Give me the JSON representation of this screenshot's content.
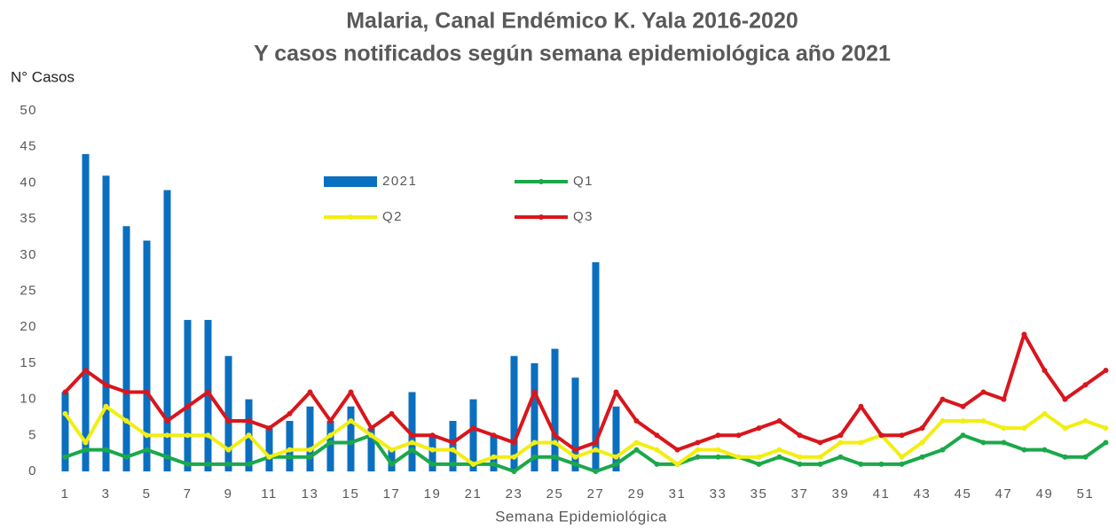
{
  "chart_data": {
    "type": "bar",
    "title": "Malaria, Canal Endémico K. Yala 2016-2020",
    "subtitle": "Y casos notificados según semana epidemiológica año 2021",
    "y_label": "N° Casos",
    "x_label": "Semana Epidemiológica",
    "categories": [
      1,
      null,
      3,
      null,
      5,
      null,
      7,
      null,
      9,
      null,
      11,
      null,
      13,
      null,
      15,
      null,
      17,
      null,
      19,
      null,
      21,
      null,
      23,
      null,
      25,
      null,
      27,
      null,
      29,
      null,
      31,
      null,
      33,
      null,
      35,
      null,
      37,
      null,
      39,
      null,
      41,
      null,
      43,
      null,
      45,
      null,
      47,
      null,
      49,
      null,
      51,
      null
    ],
    "series": [
      {
        "name": "2021",
        "type": "bar",
        "color": "#0b6fc0",
        "values": [
          11,
          44,
          41,
          34,
          32,
          39,
          21,
          21,
          16,
          10,
          6,
          7,
          9,
          7,
          9,
          6,
          3,
          11,
          5,
          7,
          10,
          5,
          16,
          15,
          17,
          13,
          29,
          9,
          null,
          null,
          null,
          null,
          null,
          null,
          null,
          null,
          null,
          null,
          null,
          null,
          null,
          null,
          null,
          null,
          null,
          null,
          null,
          null,
          null,
          null,
          null,
          null
        ]
      },
      {
        "name": "Q1",
        "type": "line",
        "color": "#1ba84a",
        "values": [
          2,
          3,
          3,
          2,
          3,
          2,
          1,
          1,
          1,
          1,
          2,
          2,
          2,
          4,
          4,
          5,
          1,
          3,
          1,
          1,
          1,
          1,
          0,
          2,
          2,
          1,
          0,
          1,
          3,
          1,
          1,
          2,
          2,
          2,
          1,
          2,
          1,
          1,
          2,
          1,
          1,
          1,
          2,
          3,
          5,
          4,
          4,
          3,
          3,
          2,
          2,
          4
        ]
      },
      {
        "name": "Q2",
        "type": "line",
        "color": "#f2ee12",
        "values": [
          8,
          4,
          9,
          7,
          5,
          5,
          5,
          5,
          3,
          5,
          2,
          3,
          3,
          5,
          7,
          5,
          3,
          4,
          3,
          3,
          1,
          2,
          2,
          4,
          4,
          2,
          3,
          2,
          4,
          3,
          1,
          3,
          3,
          2,
          2,
          3,
          2,
          2,
          4,
          4,
          5,
          2,
          4,
          7,
          7,
          7,
          6,
          6,
          8,
          6,
          7,
          6
        ]
      },
      {
        "name": "Q3",
        "type": "line",
        "color": "#d9161c",
        "values": [
          11,
          14,
          12,
          11,
          11,
          7,
          9,
          11,
          7,
          7,
          6,
          8,
          11,
          7,
          11,
          6,
          8,
          5,
          5,
          4,
          6,
          5,
          4,
          11,
          5,
          3,
          4,
          11,
          7,
          5,
          3,
          4,
          5,
          5,
          6,
          7,
          5,
          4,
          5,
          9,
          5,
          5,
          6,
          10,
          9,
          11,
          10,
          19,
          14,
          10,
          12,
          14
        ]
      }
    ],
    "ylim": [
      0,
      50
    ],
    "yticks": [
      0,
      5,
      10,
      15,
      20,
      25,
      30,
      35,
      40,
      45,
      50
    ],
    "grid": false
  }
}
